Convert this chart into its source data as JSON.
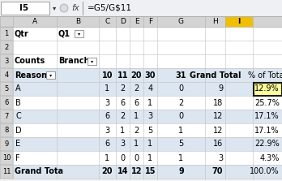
{
  "formula_bar_cell": "I5",
  "formula_bar_formula": "=G5/G$11",
  "row4_branches": [
    "10",
    "11",
    "20",
    "30",
    "31",
    "Grand Total"
  ],
  "row4_pct": "% of Total",
  "reasons": [
    "A",
    "B",
    "C",
    "D",
    "E",
    "F"
  ],
  "branch_data": [
    [
      1,
      2,
      2,
      4,
      0,
      9
    ],
    [
      3,
      6,
      6,
      1,
      2,
      18
    ],
    [
      6,
      2,
      1,
      3,
      0,
      12
    ],
    [
      3,
      1,
      2,
      5,
      1,
      12
    ],
    [
      6,
      3,
      1,
      1,
      5,
      16
    ],
    [
      1,
      0,
      0,
      1,
      1,
      3
    ]
  ],
  "grand_total_row": [
    20,
    14,
    12,
    15,
    9,
    70
  ],
  "pct_values": [
    "12.9%",
    "25.7%",
    "17.1%",
    "17.1%",
    "22.9%",
    "4.3%",
    "100.0%"
  ],
  "row_shading_alt": "#dce6f1",
  "row_shading_white": "#ffffff",
  "col_header_bg": "#d4d4d4",
  "col_I_header_bg": "#f0c000",
  "formula_bar_bg": "#f2f2f2",
  "grid_color": "#c0c0c0",
  "row_num_bg": "#d4d4d4",
  "filter_btn_bg": "#ffffff"
}
